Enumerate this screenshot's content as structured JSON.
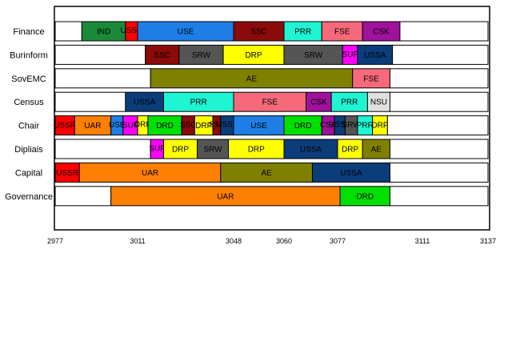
{
  "chart_data": {
    "type": "bar",
    "subtype": "timeline",
    "title": "",
    "xlabel": "",
    "ylabel": "",
    "x_ticks": [
      2977,
      3011,
      3048,
      3060,
      3077,
      3111,
      3137
    ],
    "xlim": [
      2977,
      3137
    ],
    "rows": [
      {
        "name": "Finance",
        "segments": [
          {
            "label": "",
            "start": 2977,
            "end": 2988,
            "color": "#ffffff"
          },
          {
            "label": "IND",
            "start": 2988,
            "end": 3006,
            "color": "#1a8a3a"
          },
          {
            "label": "USSR",
            "start": 3006,
            "end": 3011,
            "color": "#ff0000"
          },
          {
            "label": "USE",
            "start": 3011,
            "end": 3048,
            "color": "#1e7ee6"
          },
          {
            "label": "SSC",
            "start": 3048,
            "end": 3060,
            "color": "#8b0a0a"
          },
          {
            "label": "PRR",
            "start": 3060,
            "end": 3072,
            "color": "#1ff5d2"
          },
          {
            "label": "FSE",
            "start": 3072,
            "end": 3087,
            "color": "#f5697a"
          },
          {
            "label": "CSK",
            "start": 3087,
            "end": 3102,
            "color": "#a0119c"
          },
          {
            "label": "",
            "start": 3102,
            "end": 3137,
            "color": "#ffffff"
          }
        ]
      },
      {
        "name": "Burinform",
        "segments": [
          {
            "label": "",
            "start": 2977,
            "end": 3014,
            "color": "#ffffff"
          },
          {
            "label": "SSC",
            "start": 3014,
            "end": 3027,
            "color": "#8b0a0a"
          },
          {
            "label": "SRW",
            "start": 3027,
            "end": 3044,
            "color": "#555555"
          },
          {
            "label": "DRP",
            "start": 3044,
            "end": 3060,
            "color": "#ffff00"
          },
          {
            "label": "SRW",
            "start": 3060,
            "end": 3079,
            "color": "#555555"
          },
          {
            "label": "SUF",
            "start": 3079,
            "end": 3085,
            "color": "#ff00ff"
          },
          {
            "label": "USSA",
            "start": 3085,
            "end": 3099,
            "color": "#0b3d7a"
          },
          {
            "label": "",
            "start": 3099,
            "end": 3137,
            "color": "#ffffff"
          }
        ]
      },
      {
        "name": "SovEMC",
        "segments": [
          {
            "label": "",
            "start": 2977,
            "end": 3016,
            "color": "#ffffff"
          },
          {
            "label": "AE",
            "start": 3016,
            "end": 3083,
            "color": "#808000"
          },
          {
            "label": "FSE",
            "start": 3083,
            "end": 3098,
            "color": "#f5697a"
          },
          {
            "label": "",
            "start": 3098,
            "end": 3137,
            "color": "#ffffff"
          }
        ]
      },
      {
        "name": "Census",
        "segments": [
          {
            "label": "",
            "start": 2977,
            "end": 3006,
            "color": "#ffffff"
          },
          {
            "label": "USSA",
            "start": 3006,
            "end": 3021,
            "color": "#0b3d7a"
          },
          {
            "label": "PRR",
            "start": 3021,
            "end": 3048,
            "color": "#1ff5d2"
          },
          {
            "label": "FSE",
            "start": 3048,
            "end": 3067,
            "color": "#f5697a"
          },
          {
            "label": "CSK",
            "start": 3067,
            "end": 3075,
            "color": "#a0119c"
          },
          {
            "label": "PRR",
            "start": 3075,
            "end": 3089,
            "color": "#1ff5d2"
          },
          {
            "label": "NSU",
            "start": 3089,
            "end": 3098,
            "color": "#e0e0e0"
          },
          {
            "label": "",
            "start": 3098,
            "end": 3137,
            "color": "#ffffff"
          }
        ]
      },
      {
        "name": "Chair",
        "segments": [
          {
            "label": "USSR",
            "start": 2977,
            "end": 2985,
            "color": "#ff0000"
          },
          {
            "label": "UAR",
            "start": 2985,
            "end": 3000,
            "color": "#ff7f00"
          },
          {
            "label": "USE",
            "start": 3000,
            "end": 3005,
            "color": "#1e7ee6"
          },
          {
            "label": "SUF",
            "start": 3005,
            "end": 3011,
            "color": "#ff00ff"
          },
          {
            "label": "DRP",
            "start": 3011,
            "end": 3015,
            "color": "#ffff00"
          },
          {
            "label": "DRD",
            "start": 3015,
            "end": 3028,
            "color": "#00e000"
          },
          {
            "label": "SSC",
            "start": 3028,
            "end": 3033,
            "color": "#8b0a0a"
          },
          {
            "label": "DRP",
            "start": 3033,
            "end": 3040,
            "color": "#ffff00"
          },
          {
            "label": "SSC",
            "start": 3040,
            "end": 3043,
            "color": "#8b0a0a"
          },
          {
            "label": "USSA",
            "start": 3043,
            "end": 3048,
            "color": "#0b3d7a"
          },
          {
            "label": "USE",
            "start": 3048,
            "end": 3060,
            "color": "#1e7ee6"
          },
          {
            "label": "DRD",
            "start": 3060,
            "end": 3072,
            "color": "#00e000"
          },
          {
            "label": "CSK",
            "start": 3072,
            "end": 3076,
            "color": "#a0119c"
          },
          {
            "label": "USSA",
            "start": 3076,
            "end": 3080,
            "color": "#0b3d7a"
          },
          {
            "label": "SRW",
            "start": 3080,
            "end": 3085,
            "color": "#555555"
          },
          {
            "label": "PRR",
            "start": 3085,
            "end": 3091,
            "color": "#1ff5d2"
          },
          {
            "label": "DRP",
            "start": 3091,
            "end": 3097,
            "color": "#ffff00"
          },
          {
            "label": "",
            "start": 3097,
            "end": 3137,
            "color": "#ffffff"
          }
        ]
      },
      {
        "name": "Dipliais",
        "segments": [
          {
            "label": "",
            "start": 2977,
            "end": 3016,
            "color": "#ffffff"
          },
          {
            "label": "SUF",
            "start": 3016,
            "end": 3021,
            "color": "#ff00ff"
          },
          {
            "label": "DRP",
            "start": 3021,
            "end": 3034,
            "color": "#ffff00"
          },
          {
            "label": "SRW",
            "start": 3034,
            "end": 3046,
            "color": "#555555"
          },
          {
            "label": "DRP",
            "start": 3046,
            "end": 3060,
            "color": "#ffff00"
          },
          {
            "label": "USSA",
            "start": 3060,
            "end": 3077,
            "color": "#0b3d7a"
          },
          {
            "label": "DRP",
            "start": 3077,
            "end": 3087,
            "color": "#ffff00"
          },
          {
            "label": "AE",
            "start": 3087,
            "end": 3098,
            "color": "#808000"
          },
          {
            "label": "",
            "start": 3098,
            "end": 3137,
            "color": "#ffffff"
          }
        ]
      },
      {
        "name": "Capital",
        "segments": [
          {
            "label": "USSR",
            "start": 2977,
            "end": 2987,
            "color": "#ff0000"
          },
          {
            "label": "UAR",
            "start": 2987,
            "end": 3043,
            "color": "#ff7f00"
          },
          {
            "label": "AE",
            "start": 3043,
            "end": 3069,
            "color": "#808000"
          },
          {
            "label": "USSA",
            "start": 3069,
            "end": 3098,
            "color": "#0b3d7a"
          },
          {
            "label": "",
            "start": 3098,
            "end": 3137,
            "color": "#ffffff"
          }
        ]
      },
      {
        "name": "Governance",
        "segments": [
          {
            "label": "",
            "start": 2977,
            "end": 3000,
            "color": "#ffffff"
          },
          {
            "label": "UAR",
            "start": 3000,
            "end": 3078,
            "color": "#ff7f00"
          },
          {
            "label": "DRD",
            "start": 3078,
            "end": 3098,
            "color": "#00e000"
          },
          {
            "label": "",
            "start": 3098,
            "end": 3137,
            "color": "#ffffff"
          }
        ]
      }
    ]
  }
}
